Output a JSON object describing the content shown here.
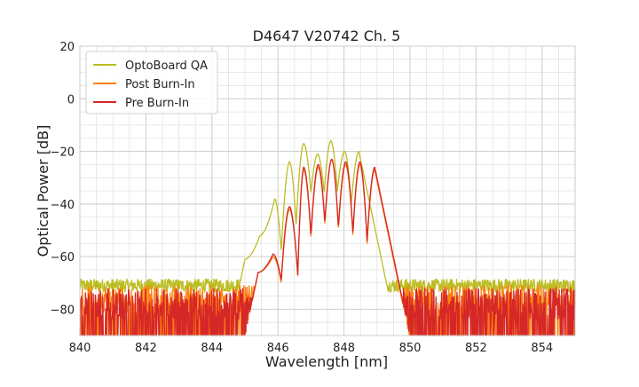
{
  "chart_data": {
    "type": "line",
    "title": "D4647 V20742 Ch. 5",
    "xlabel": "Wavelength [nm]",
    "ylabel": "Optical Power [dB]",
    "xlim": [
      840,
      855
    ],
    "ylim": [
      -90,
      20
    ],
    "xticks": [
      840,
      842,
      844,
      846,
      848,
      850,
      852,
      854
    ],
    "yticks": [
      20,
      0,
      -20,
      -40,
      -60,
      -80
    ],
    "xtick_labels": [
      "840",
      "842",
      "844",
      "846",
      "848",
      "850",
      "852",
      "854"
    ],
    "ytick_labels": [
      "20",
      "0",
      "−20",
      "−40",
      "−60",
      "−80"
    ],
    "grid": true,
    "minor_grid": true,
    "legend_position": "top-left",
    "series": [
      {
        "name": "OptoBoard QA",
        "color": "#bcbd22",
        "baseline": -71,
        "noise": 2.5,
        "peaks": [
          {
            "x": 845.0,
            "y": -61
          },
          {
            "x": 845.45,
            "y": -52
          },
          {
            "x": 845.9,
            "y": -38
          },
          {
            "x": 846.35,
            "y": -24
          },
          {
            "x": 846.78,
            "y": -17
          },
          {
            "x": 847.2,
            "y": -21
          },
          {
            "x": 847.6,
            "y": -16
          },
          {
            "x": 848.02,
            "y": -20
          },
          {
            "x": 848.45,
            "y": -20
          }
        ],
        "troughs": [
          {
            "x": 846.1,
            "y": -58
          },
          {
            "x": 846.55,
            "y": -48
          },
          {
            "x": 847.0,
            "y": -36
          },
          {
            "x": 847.4,
            "y": -36
          },
          {
            "x": 847.8,
            "y": -35
          },
          {
            "x": 848.22,
            "y": -40
          }
        ],
        "edges": [
          844.6,
          848.6
        ]
      },
      {
        "name": "Post Burn-In",
        "color": "#ff7f0e",
        "baseline": -76,
        "noise": 5,
        "peaks": [
          {
            "x": 845.4,
            "y": -66
          },
          {
            "x": 845.85,
            "y": -60
          },
          {
            "x": 846.35,
            "y": -42
          },
          {
            "x": 846.78,
            "y": -27
          },
          {
            "x": 847.22,
            "y": -26
          },
          {
            "x": 847.63,
            "y": -23
          },
          {
            "x": 848.05,
            "y": -25
          },
          {
            "x": 848.48,
            "y": -25
          },
          {
            "x": 848.93,
            "y": -27
          }
        ],
        "troughs": [
          {
            "x": 846.1,
            "y": -70
          },
          {
            "x": 846.6,
            "y": -67
          },
          {
            "x": 847.0,
            "y": -53
          },
          {
            "x": 847.42,
            "y": -48
          },
          {
            "x": 847.83,
            "y": -50
          },
          {
            "x": 848.27,
            "y": -52
          },
          {
            "x": 848.7,
            "y": -55
          }
        ],
        "edges": [
          845.3,
          849.15
        ]
      },
      {
        "name": "Pre Burn-In",
        "color": "#d62728",
        "baseline": -78,
        "noise": 6,
        "peaks": [
          {
            "x": 845.4,
            "y": -66
          },
          {
            "x": 845.85,
            "y": -59
          },
          {
            "x": 846.35,
            "y": -41
          },
          {
            "x": 846.78,
            "y": -26
          },
          {
            "x": 847.22,
            "y": -25
          },
          {
            "x": 847.63,
            "y": -23
          },
          {
            "x": 848.05,
            "y": -24
          },
          {
            "x": 848.48,
            "y": -24
          },
          {
            "x": 848.93,
            "y": -26
          }
        ],
        "troughs": [
          {
            "x": 846.1,
            "y": -69
          },
          {
            "x": 846.6,
            "y": -67
          },
          {
            "x": 847.0,
            "y": -52
          },
          {
            "x": 847.42,
            "y": -47
          },
          {
            "x": 847.83,
            "y": -49
          },
          {
            "x": 848.27,
            "y": -51
          },
          {
            "x": 848.7,
            "y": -54
          }
        ],
        "edges": [
          845.3,
          849.2
        ]
      }
    ]
  }
}
